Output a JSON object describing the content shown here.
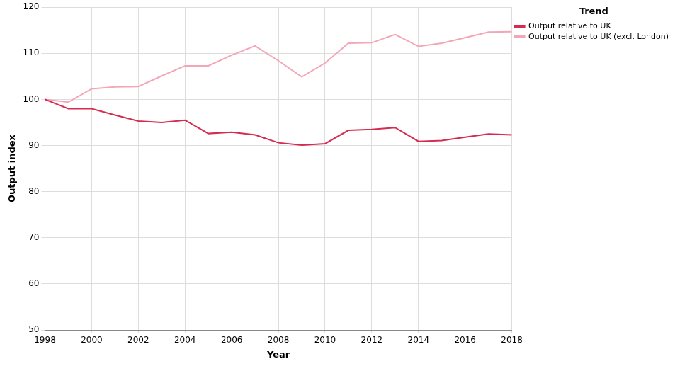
{
  "chart_data": {
    "type": "line",
    "x_label": "Year",
    "y_label": "Output index",
    "legend_title": "Trend",
    "legend": "top-right",
    "grid": true,
    "x": [
      1998,
      1999,
      2000,
      2001,
      2002,
      2003,
      2004,
      2005,
      2006,
      2007,
      2008,
      2009,
      2010,
      2011,
      2012,
      2013,
      2014,
      2015,
      2016,
      2017,
      2018
    ],
    "series": [
      {
        "name": "Output relative to UK",
        "color": "#d62a50",
        "values": [
          100,
          98,
          98,
          96.6,
          95.3,
          95.0,
          95.5,
          92.6,
          92.9,
          92.3,
          90.6,
          90.1,
          90.4,
          93.3,
          93.5,
          93.9,
          90.9,
          91.1,
          91.8,
          92.5,
          92.3
        ]
      },
      {
        "name": "Output relative to UK (excl. London)",
        "color": "#f4a6b6",
        "values": [
          100,
          99.4,
          102.3,
          102.7,
          102.8,
          105.1,
          107.3,
          107.3,
          109.6,
          111.6,
          108.4,
          104.9,
          107.9,
          112.2,
          112.3,
          114.1,
          111.5,
          112.2,
          113.4,
          114.6,
          114.7
        ]
      }
    ],
    "xlim": [
      1998,
      2018
    ],
    "xticks": [
      1998,
      2000,
      2002,
      2004,
      2006,
      2008,
      2010,
      2012,
      2014,
      2016,
      2018
    ],
    "ylim": [
      50,
      120
    ],
    "yticks": [
      50,
      60,
      70,
      80,
      90,
      100,
      110,
      120
    ]
  }
}
